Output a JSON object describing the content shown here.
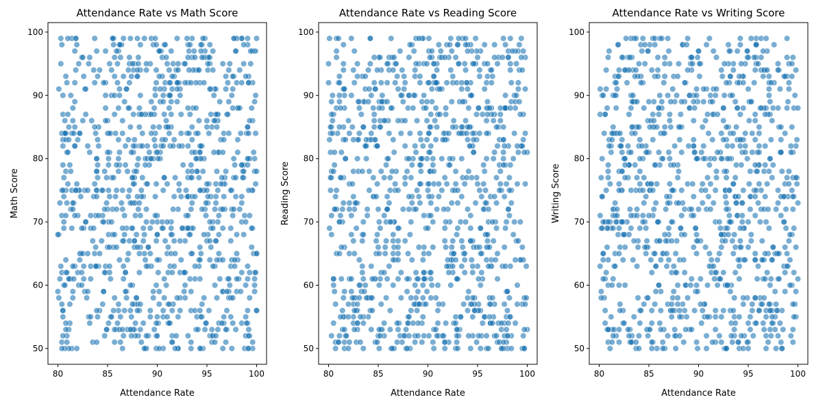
{
  "chart_data": [
    {
      "type": "scatter",
      "title": "Attendance Rate vs Math Score",
      "xlabel": "Attendance Rate",
      "ylabel": "Math Score",
      "xlim": [
        79,
        101
      ],
      "ylim": [
        47.5,
        101.5
      ],
      "xticks": [
        80,
        85,
        90,
        95,
        100
      ],
      "yticks": [
        50,
        60,
        70,
        80,
        90,
        100
      ],
      "grid": false,
      "color": "#1f77b4",
      "points_note_seed": 11
    },
    {
      "type": "scatter",
      "title": "Attendance Rate vs Reading Score",
      "xlabel": "Attendance Rate",
      "ylabel": "Reading Score",
      "xlim": [
        79,
        101
      ],
      "ylim": [
        47.5,
        101.5
      ],
      "xticks": [
        80,
        85,
        90,
        95,
        100
      ],
      "yticks": [
        50,
        60,
        70,
        80,
        90,
        100
      ],
      "grid": false,
      "color": "#1f77b4",
      "points_note_seed": 23
    },
    {
      "type": "scatter",
      "title": "Attendance Rate vs Writing Score",
      "xlabel": "Attendance Rate",
      "ylabel": "Writing Score",
      "xlim": [
        79,
        101
      ],
      "ylim": [
        47.5,
        101.5
      ],
      "xticks": [
        80,
        85,
        90,
        95,
        100
      ],
      "yticks": [
        50,
        60,
        70,
        80,
        90,
        100
      ],
      "grid": false,
      "color": "#1f77b4",
      "points_note_seed": 37
    }
  ]
}
